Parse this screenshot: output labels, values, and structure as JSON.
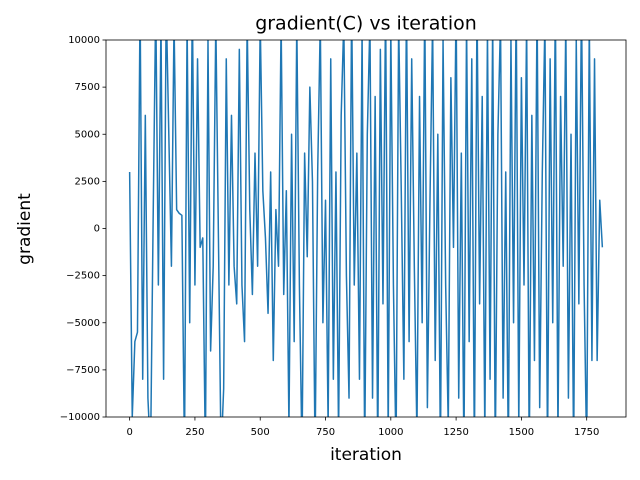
{
  "chart_data": {
    "type": "line",
    "title": "gradient(C) vs iteration",
    "x_label": "iteration",
    "y_label": "gradient",
    "color": "#1f77b4",
    "xlim": [
      -90.5,
      1900.5
    ],
    "ylim": [
      -10000,
      10000
    ],
    "xticks": [
      0,
      250,
      500,
      750,
      1000,
      1250,
      1500,
      1750
    ],
    "yticks": [
      {
        "value": -10000,
        "label": "−10000"
      },
      {
        "value": -7500,
        "label": "−7500"
      },
      {
        "value": -5000,
        "label": "−5000"
      },
      {
        "value": -2500,
        "label": "−2500"
      },
      0,
      2500,
      5000,
      7500,
      10000
    ],
    "x": [
      0,
      10,
      20,
      30,
      40,
      50,
      60,
      70,
      80,
      90,
      100,
      110,
      120,
      130,
      140,
      150,
      160,
      170,
      180,
      190,
      200,
      210,
      220,
      230,
      240,
      250,
      260,
      270,
      280,
      290,
      300,
      310,
      320,
      330,
      340,
      350,
      360,
      370,
      380,
      390,
      400,
      410,
      420,
      430,
      440,
      450,
      460,
      470,
      480,
      490,
      500,
      510,
      520,
      530,
      540,
      550,
      560,
      570,
      580,
      590,
      600,
      610,
      620,
      630,
      640,
      650,
      660,
      670,
      680,
      690,
      700,
      710,
      720,
      730,
      740,
      750,
      760,
      770,
      780,
      790,
      800,
      810,
      820,
      830,
      840,
      850,
      860,
      870,
      880,
      890,
      900,
      910,
      920,
      930,
      940,
      950,
      960,
      970,
      980,
      990,
      1000,
      1010,
      1020,
      1030,
      1040,
      1050,
      1060,
      1070,
      1080,
      1090,
      1100,
      1110,
      1120,
      1130,
      1140,
      1150,
      1160,
      1170,
      1180,
      1190,
      1200,
      1210,
      1220,
      1230,
      1240,
      1250,
      1260,
      1270,
      1280,
      1290,
      1300,
      1310,
      1320,
      1330,
      1340,
      1350,
      1360,
      1370,
      1380,
      1390,
      1400,
      1410,
      1420,
      1430,
      1440,
      1450,
      1460,
      1470,
      1480,
      1490,
      1500,
      1510,
      1520,
      1530,
      1540,
      1550,
      1560,
      1570,
      1580,
      1590,
      1600,
      1610,
      1620,
      1630,
      1640,
      1650,
      1660,
      1670,
      1680,
      1690,
      1700,
      1710,
      1720,
      1730,
      1740,
      1750,
      1760,
      1770,
      1780,
      1790,
      1800,
      1810
    ],
    "values": [
      3000,
      -10000,
      -6000,
      -5500,
      12000,
      -8000,
      6000,
      -9000,
      -12000,
      500,
      12000,
      -3000,
      11000,
      -8000,
      12000,
      5000,
      -2000,
      11000,
      1000,
      800,
      700,
      -12000,
      11000,
      -5000,
      12000,
      -3000,
      9000,
      -1000,
      -500,
      -12000,
      10000,
      -6500,
      -2000,
      11000,
      -500,
      -12000,
      -8500,
      9000,
      -3000,
      6000,
      -2000,
      -4000,
      9500,
      -3000,
      -6000,
      11000,
      1000,
      -3500,
      4000,
      -2000,
      11000,
      2000,
      -500,
      -4500,
      3000,
      -7000,
      1000,
      -2000,
      11000,
      -3500,
      2000,
      -10500,
      5000,
      -6000,
      11000,
      -3000,
      -12000,
      4000,
      -1500,
      7500,
      2500,
      -12000,
      3000,
      11000,
      -5000,
      1500,
      -10500,
      9000,
      -8000,
      3000,
      -11000,
      6000,
      11000,
      -2500,
      -9000,
      12000,
      -3000,
      4000,
      -8000,
      10500,
      -12000,
      5000,
      11000,
      -9000,
      7000,
      -12000,
      9500,
      -4000,
      12000,
      -11000,
      10500,
      -3000,
      -12000,
      11000,
      2000,
      -8000,
      12000,
      -6000,
      9000,
      -2000,
      -11000,
      7000,
      -5000,
      12000,
      -9500,
      1500,
      11000,
      -7000,
      5000,
      -12000,
      10000,
      -3000,
      -10500,
      8000,
      -1000,
      12000,
      -9000,
      4000,
      -12000,
      11000,
      -6000,
      9000,
      -12000,
      12000,
      -4000,
      7000,
      -11000,
      10500,
      -8000,
      11000,
      -12000,
      5000,
      11000,
      -9000,
      3000,
      -12000,
      10000,
      -5000,
      12000,
      -10500,
      8000,
      -3000,
      11000,
      -12000,
      6000,
      -7000,
      12000,
      -9500,
      3000,
      11000,
      -12000,
      9000,
      -5000,
      12000,
      -11000,
      7000,
      -2000,
      11000,
      -9000,
      5000,
      -12000,
      10000,
      -4000,
      12000,
      -3000,
      -12000,
      11000,
      -7000,
      9000,
      -7000,
      1500,
      -1000
    ]
  }
}
